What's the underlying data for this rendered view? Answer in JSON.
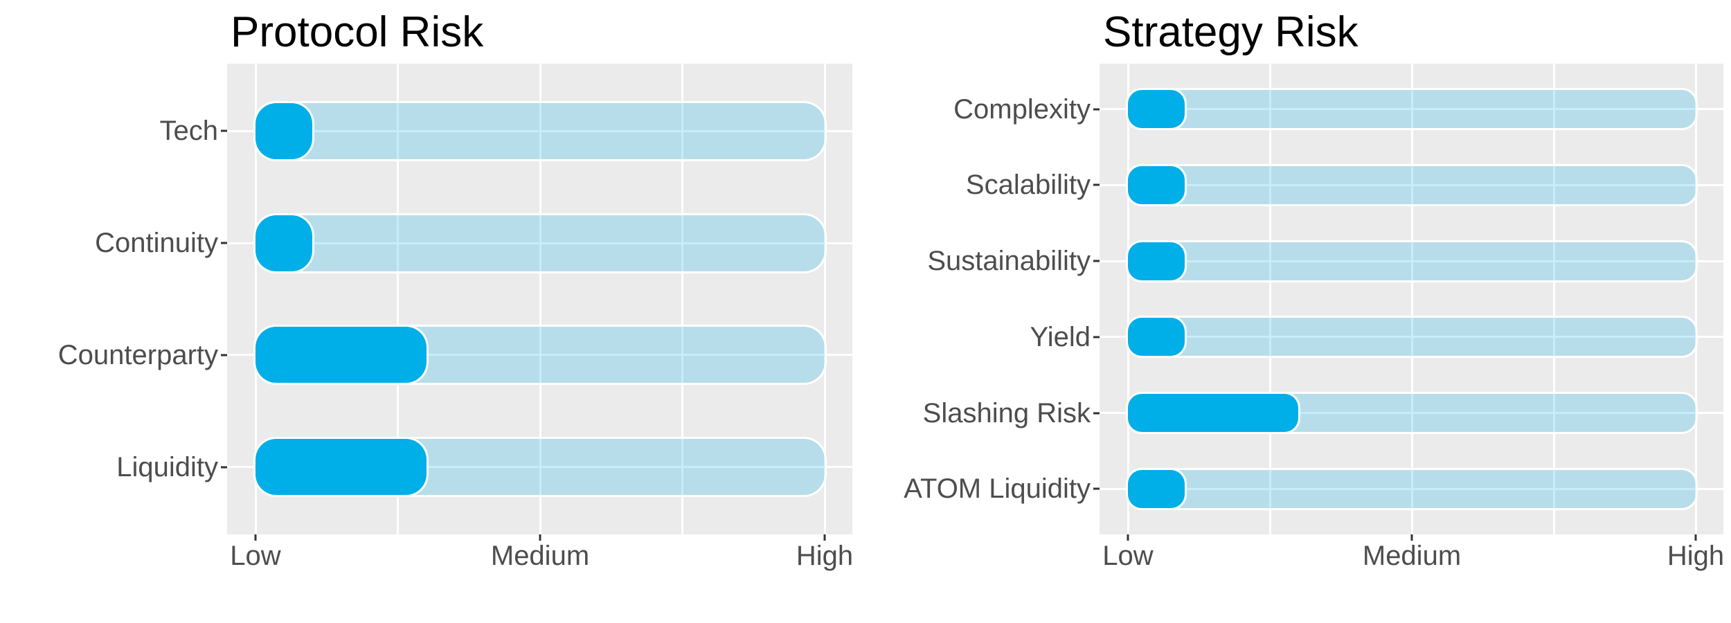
{
  "figure": {
    "background": "#FFFFFF"
  },
  "style": {
    "bar_color": "#00AEE8",
    "track_color": "rgba(0,174,232,0.22)",
    "bar_outline": "#FFFFFF",
    "panel_background": "#EBEBEB",
    "gridline_color": "#FFFFFF",
    "axis_text_color": "#4D4D4D",
    "tick_mark_color": "#333333",
    "title_color": "#000000"
  },
  "chart_data": [
    {
      "type": "bar",
      "orientation": "horizontal",
      "title": "Protocol Risk",
      "categories": [
        "Tech",
        "Continuity",
        "Counterparty",
        "Liquidity"
      ],
      "values": [
        1.2,
        1.2,
        1.6,
        1.6
      ],
      "track_full_value": 3,
      "x_ticks": [
        "Low",
        "Medium",
        "High"
      ],
      "x_tick_values": [
        1,
        2,
        3
      ],
      "xlim": [
        1,
        3
      ],
      "xlabel": "",
      "ylabel": "",
      "grid": true,
      "legend": "none"
    },
    {
      "type": "bar",
      "orientation": "horizontal",
      "title": "Strategy Risk",
      "categories": [
        "Complexity",
        "Scalability",
        "Sustainability",
        "Yield",
        "Slashing Risk",
        "ATOM Liquidity"
      ],
      "values": [
        1.2,
        1.2,
        1.2,
        1.2,
        1.6,
        1.2
      ],
      "track_full_value": 3,
      "x_ticks": [
        "Low",
        "Medium",
        "High"
      ],
      "x_tick_values": [
        1,
        2,
        3
      ],
      "xlim": [
        1,
        3
      ],
      "xlabel": "",
      "ylabel": "",
      "grid": true,
      "legend": "none"
    }
  ]
}
